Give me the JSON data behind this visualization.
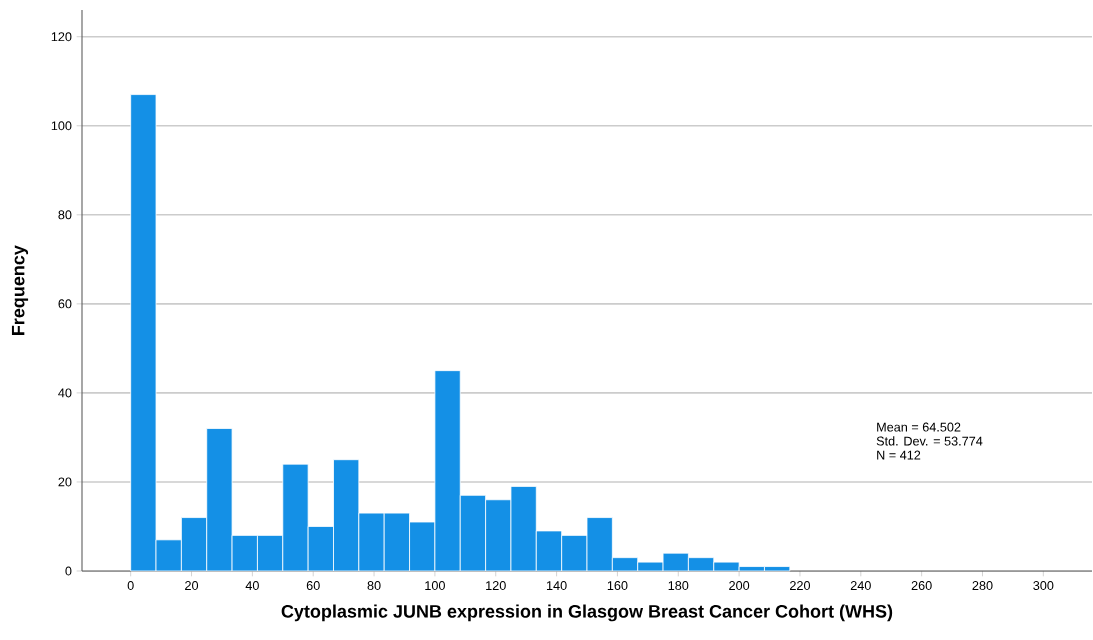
{
  "chart_data": {
    "type": "histogram",
    "xlabel": "Cytoplasmic JUNB expression in Glasgow Breast Cancer Cohort (WHS)",
    "ylabel": "Frequency",
    "bins": [
      0,
      8.33,
      16.67,
      25,
      33.33,
      41.67,
      50,
      58.33,
      66.67,
      75,
      83.33,
      91.67,
      100,
      108.33,
      116.67,
      125,
      133.33,
      141.67,
      150,
      158.33,
      166.67,
      175,
      183.33,
      191.67,
      200,
      208.33,
      216.67
    ],
    "values": [
      107,
      7,
      12,
      32,
      8,
      8,
      24,
      10,
      25,
      13,
      13,
      11,
      45,
      17,
      16,
      19,
      9,
      8,
      12,
      3,
      2,
      4,
      3,
      2,
      1,
      1
    ],
    "color": "#1490e6",
    "xlim": [
      -16,
      316
    ],
    "ylim": [
      0,
      126
    ],
    "xticks": [
      0,
      20,
      40,
      60,
      80,
      100,
      120,
      140,
      160,
      180,
      200,
      220,
      240,
      260,
      280,
      300
    ],
    "yticks": [
      0,
      20,
      40,
      60,
      80,
      100,
      120
    ],
    "grid": "y",
    "annotations": [
      "Mean = 64.502",
      "Std. Dev. = 53.774",
      "N = 412"
    ]
  }
}
